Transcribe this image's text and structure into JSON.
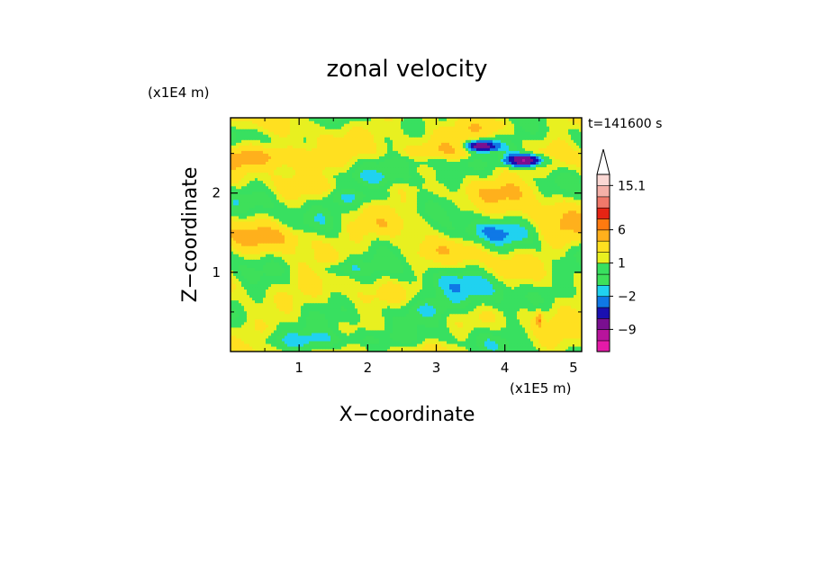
{
  "chart_data": {
    "type": "heatmap",
    "title": "zonal velocity",
    "xlabel": "X−coordinate",
    "ylabel": "Z−coordinate",
    "x_scale_label": "(x1E5 m)",
    "y_scale_label": "(x1E4 m)",
    "time_label": "t=141600 s",
    "xlim": [
      0,
      5.12
    ],
    "ylim": [
      0,
      2.95
    ],
    "x_ticks": [
      "1",
      "2",
      "3",
      "4",
      "5"
    ],
    "y_ticks": [
      "1",
      "2"
    ],
    "x_tick_values": [
      1,
      2,
      3,
      4,
      5
    ],
    "y_tick_values": [
      1,
      2
    ],
    "colorbar": {
      "levels": [
        -13,
        -11,
        -9,
        -6,
        -4,
        -2,
        -1,
        0,
        1,
        2,
        4,
        6,
        8,
        10,
        12,
        15.1
      ],
      "colors": [
        "#e61aa8",
        "#b8149c",
        "#7a0f90",
        "#1a10b0",
        "#0f78e6",
        "#20d2f0",
        "#3ee05a",
        "#38e060",
        "#e8f020",
        "#ffe020",
        "#ffb01c",
        "#ff7a10",
        "#e62414",
        "#f0786a",
        "#f5b0a8",
        "#fbd8d4"
      ],
      "labels": [
        "15.1",
        "6",
        "1",
        "−2",
        "−9"
      ],
      "label_values": [
        15.1,
        6,
        1,
        -2,
        -9
      ],
      "extend": "max"
    }
  }
}
